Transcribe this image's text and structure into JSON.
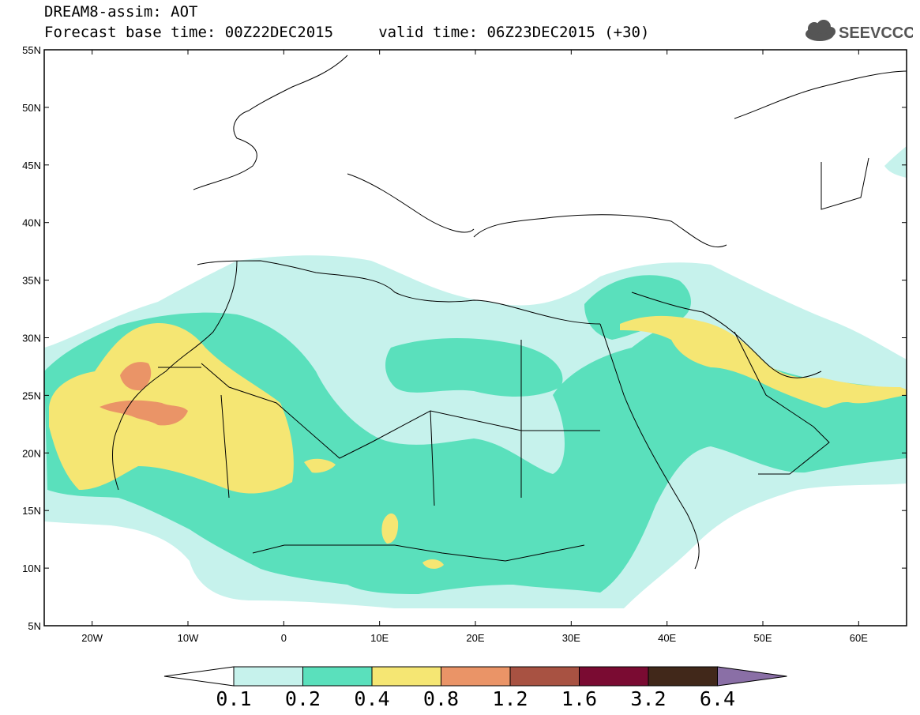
{
  "header": {
    "title": "DREAM8-assim: AOT",
    "forecast_line": "Forecast base time: 00Z22DEC2015     valid time: 06Z23DEC2015 (+30)"
  },
  "logo": {
    "text": "SEEVCCC",
    "color": "#555555"
  },
  "map": {
    "lon_range": [
      -25,
      65
    ],
    "lat_range": [
      5,
      55
    ],
    "lat_labels": [
      "5N",
      "10N",
      "15N",
      "20N",
      "25N",
      "30N",
      "35N",
      "40N",
      "45N",
      "50N",
      "55N"
    ],
    "lon_labels": [
      "20W",
      "10W",
      "0",
      "10E",
      "20E",
      "30E",
      "40E",
      "50E",
      "60E"
    ]
  },
  "colorbar": {
    "labels": [
      "0.1",
      "0.2",
      "0.4",
      "0.8",
      "1.2",
      "1.6",
      "3.2",
      "6.4"
    ],
    "colors": [
      "#ffffff",
      "#c6f2ec",
      "#5ae0bc",
      "#f5e673",
      "#ea9467",
      "#a85242",
      "#7a0b32",
      "#41281a",
      "#8a6fa6"
    ]
  }
}
